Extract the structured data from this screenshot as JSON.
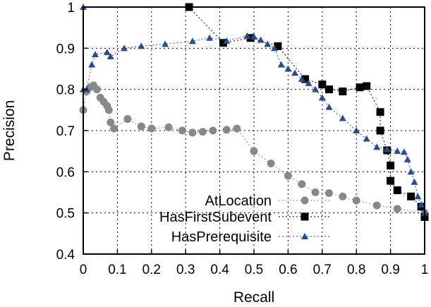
{
  "chart_data": {
    "type": "line",
    "title": "",
    "xlabel": "Recall",
    "ylabel": "Precision",
    "xlim": [
      0,
      1
    ],
    "ylim": [
      0.4,
      1
    ],
    "x_ticks": [
      "0",
      "0.1",
      "0.2",
      "0.3",
      "0.4",
      "0.5",
      "0.6",
      "0.7",
      "0.8",
      "0.9",
      "1"
    ],
    "y_ticks": [
      "0.4",
      "0.5",
      "0.6",
      "0.7",
      "0.8",
      "0.9",
      "1"
    ],
    "grid": true,
    "legend_position": "bottom-right",
    "series": [
      {
        "name": "AtLocation",
        "color": "#888888",
        "marker": "circle",
        "points": [
          [
            0.0,
            0.75
          ],
          [
            0.01,
            0.795
          ],
          [
            0.02,
            0.805
          ],
          [
            0.03,
            0.81
          ],
          [
            0.04,
            0.8
          ],
          [
            0.05,
            0.78
          ],
          [
            0.06,
            0.77
          ],
          [
            0.07,
            0.76
          ],
          [
            0.075,
            0.75
          ],
          [
            0.08,
            0.72
          ],
          [
            0.09,
            0.705
          ],
          [
            0.13,
            0.728
          ],
          [
            0.17,
            0.71
          ],
          [
            0.2,
            0.705
          ],
          [
            0.25,
            0.708
          ],
          [
            0.29,
            0.7
          ],
          [
            0.32,
            0.695
          ],
          [
            0.35,
            0.697
          ],
          [
            0.38,
            0.7
          ],
          [
            0.42,
            0.702
          ],
          [
            0.45,
            0.705
          ],
          [
            0.5,
            0.65
          ],
          [
            0.55,
            0.62
          ],
          [
            0.6,
            0.59
          ],
          [
            0.64,
            0.57
          ],
          [
            0.68,
            0.55
          ],
          [
            0.72,
            0.548
          ],
          [
            0.76,
            0.54
          ],
          [
            0.8,
            0.53
          ],
          [
            0.86,
            0.518
          ],
          [
            0.92,
            0.51
          ],
          [
            1.0,
            0.5
          ]
        ]
      },
      {
        "name": "HasFirstSubevent",
        "color": "#000000",
        "marker": "square",
        "points": [
          [
            0.31,
            1.0
          ],
          [
            0.41,
            0.913
          ],
          [
            0.49,
            0.925
          ],
          [
            0.57,
            0.905
          ],
          [
            0.65,
            0.825
          ],
          [
            0.7,
            0.812
          ],
          [
            0.72,
            0.8
          ],
          [
            0.76,
            0.795
          ],
          [
            0.81,
            0.805
          ],
          [
            0.83,
            0.808
          ],
          [
            0.87,
            0.745
          ],
          [
            0.87,
            0.7
          ],
          [
            0.89,
            0.652
          ],
          [
            0.9,
            0.615
          ],
          [
            0.9,
            0.578
          ],
          [
            0.92,
            0.555
          ],
          [
            0.96,
            0.54
          ],
          [
            0.99,
            0.515
          ],
          [
            1.0,
            0.49
          ]
        ]
      },
      {
        "name": "HasPrerequisite",
        "color": "#2a4d8a",
        "marker": "triangle",
        "points": [
          [
            0.0,
            1.0
          ],
          [
            0.0,
            0.8
          ],
          [
            0.01,
            0.8
          ],
          [
            0.025,
            0.86
          ],
          [
            0.035,
            0.885
          ],
          [
            0.07,
            0.89
          ],
          [
            0.08,
            0.88
          ],
          [
            0.12,
            0.9
          ],
          [
            0.17,
            0.905
          ],
          [
            0.24,
            0.91
          ],
          [
            0.32,
            0.917
          ],
          [
            0.37,
            0.925
          ],
          [
            0.42,
            0.918
          ],
          [
            0.48,
            0.93
          ],
          [
            0.5,
            0.928
          ],
          [
            0.52,
            0.92
          ],
          [
            0.54,
            0.91
          ],
          [
            0.56,
            0.9
          ],
          [
            0.58,
            0.86
          ],
          [
            0.6,
            0.85
          ],
          [
            0.62,
            0.84
          ],
          [
            0.64,
            0.825
          ],
          [
            0.66,
            0.815
          ],
          [
            0.68,
            0.8
          ],
          [
            0.7,
            0.78
          ],
          [
            0.72,
            0.757
          ],
          [
            0.76,
            0.73
          ],
          [
            0.8,
            0.7
          ],
          [
            0.83,
            0.68
          ],
          [
            0.86,
            0.66
          ],
          [
            0.89,
            0.655
          ],
          [
            0.92,
            0.65
          ],
          [
            0.94,
            0.648
          ],
          [
            0.95,
            0.63
          ],
          [
            0.96,
            0.6
          ],
          [
            0.97,
            0.575
          ],
          [
            0.98,
            0.54
          ],
          [
            0.99,
            0.52
          ],
          [
            1.0,
            0.5
          ]
        ]
      }
    ]
  }
}
